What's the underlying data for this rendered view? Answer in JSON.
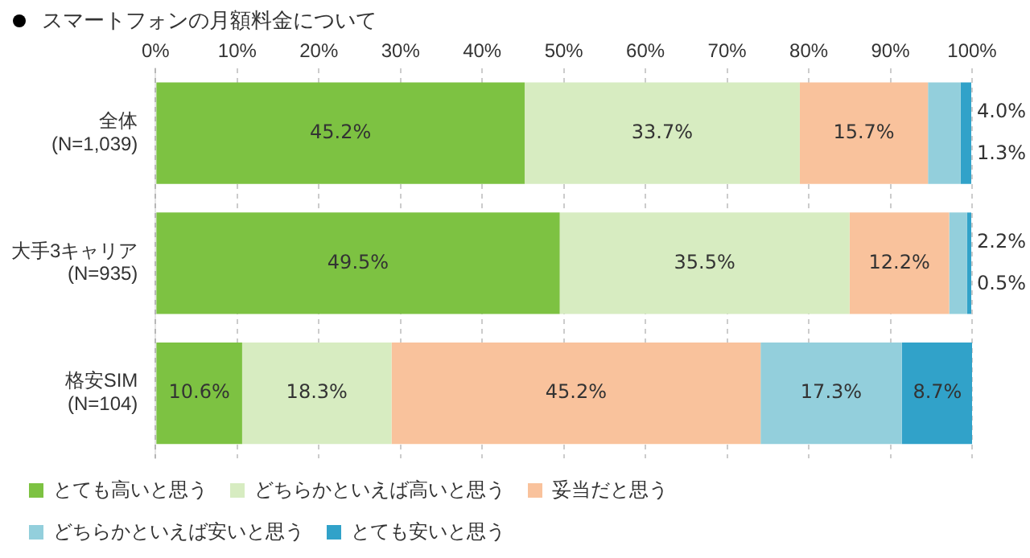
{
  "chart_data": {
    "type": "bar",
    "orientation": "horizontal",
    "stacked": true,
    "title": "スマートフォンの月額料金について",
    "categories": [
      "全体\n(N=1,039)",
      "大手3キャリア\n(N=935)",
      "格安SIM\n(N=104)"
    ],
    "series": [
      {
        "name": "とても高いと思う",
        "color": "#7dc242",
        "values": [
          45.2,
          49.5,
          10.6
        ],
        "value_labels": [
          "45.2%",
          "49.5%",
          "10.6%"
        ]
      },
      {
        "name": "どちらかといえば高いと思う",
        "color": "#d7ecc1",
        "values": [
          33.7,
          35.5,
          18.3
        ],
        "value_labels": [
          "33.7%",
          "35.5%",
          "18.3%"
        ]
      },
      {
        "name": "妥当だと思う",
        "color": "#f9c29c",
        "values": [
          15.7,
          12.2,
          45.2
        ],
        "value_labels": [
          "15.7%",
          "12.2%",
          "45.2%"
        ]
      },
      {
        "name": "どちらかといえば安いと思う",
        "color": "#93cfdc",
        "values": [
          4.0,
          2.2,
          17.3
        ],
        "value_labels": [
          "4.0%",
          "2.2%",
          "17.3%"
        ]
      },
      {
        "name": "とても安いと思う",
        "color": "#31a2c9",
        "values": [
          1.3,
          0.5,
          8.7
        ],
        "value_labels": [
          "1.3%",
          "0.5%",
          "8.7%"
        ]
      }
    ],
    "xlim": [
      0,
      100
    ],
    "xticks": [
      {
        "value": 0,
        "label": "0%"
      },
      {
        "value": 10,
        "label": "10%"
      },
      {
        "value": 20,
        "label": "20%"
      },
      {
        "value": 30,
        "label": "30%"
      },
      {
        "value": 40,
        "label": "40%"
      },
      {
        "value": 50,
        "label": "50%"
      },
      {
        "value": 60,
        "label": "60%"
      },
      {
        "value": 70,
        "label": "70%"
      },
      {
        "value": 80,
        "label": "80%"
      },
      {
        "value": 90,
        "label": "90%"
      },
      {
        "value": 100,
        "label": "100%"
      }
    ],
    "grid": "x",
    "legend": "bottom"
  }
}
